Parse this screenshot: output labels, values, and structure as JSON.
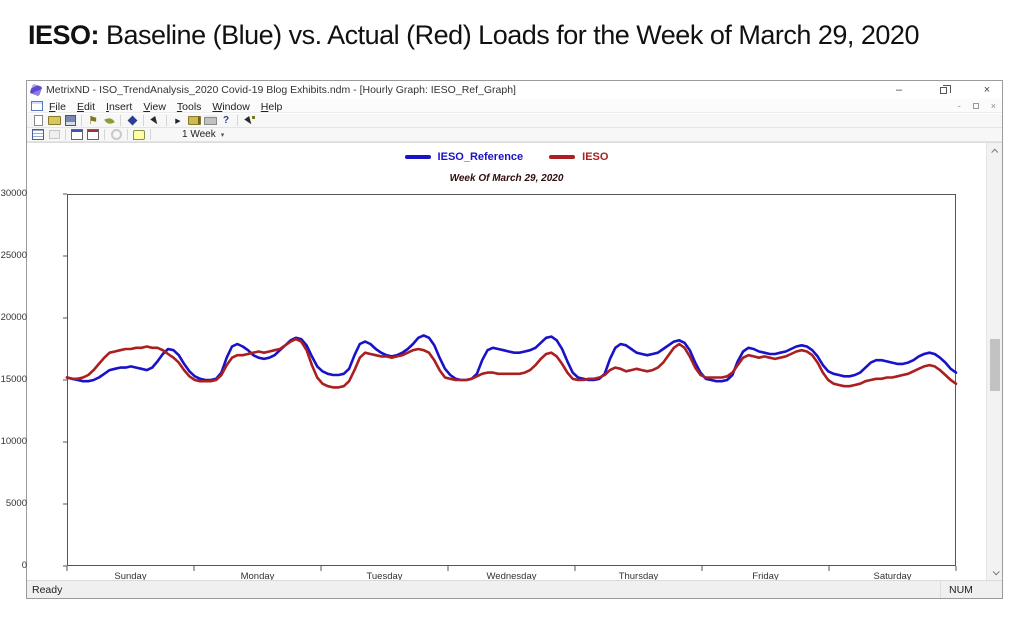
{
  "page_title": {
    "prefix": "IESO:",
    "rest": " Baseline (Blue) vs. Actual (Red) Loads for the Week of March 29, 2020"
  },
  "window": {
    "title": "MetrixND - ISO_TrendAnalysis_2020 Covid-19 Blog Exhibits.ndm - [Hourly Graph: IESO_Ref_Graph]",
    "controls": {
      "minimize": "–",
      "close": "×"
    },
    "mdi_controls": {
      "minimize": "-",
      "close": "×"
    },
    "menu_items": [
      "File",
      "Edit",
      "Insert",
      "View",
      "Tools",
      "Window",
      "Help"
    ],
    "toolbar1_icons": [
      "new-document-icon",
      "open-file-icon",
      "save-icon",
      "|",
      "flag-icon",
      "leaf-icon",
      "|",
      "book-icon",
      "|",
      "pointer-icon",
      "|",
      "run-icon",
      "export-folder-icon",
      "print-icon",
      "help-icon",
      "|",
      "pointer-run-icon"
    ],
    "toolbar2_icons": [
      "grid-icon",
      "link-disabled-icon",
      "|",
      "graph-new-icon",
      "graph-edit-icon",
      "|",
      "refresh-disabled-icon",
      "|",
      "comment-icon",
      "|"
    ],
    "toolbar_glyphs": {
      "flag-icon": "⚑",
      "run-icon": "▶",
      "help-icon": "?"
    },
    "period_selector": {
      "label": "1 Week",
      "caret": "▾"
    },
    "statusbar": {
      "left": "Ready",
      "right": "NUM"
    }
  },
  "chart_data": {
    "type": "line",
    "title": "Week Of March 29, 2020",
    "xlabel": "",
    "ylabel": "",
    "ylim": [
      0,
      30000
    ],
    "yticks": [
      0,
      5000,
      10000,
      15000,
      20000,
      25000,
      30000
    ],
    "grid": false,
    "legend_position": "top-center",
    "x_categories": [
      "Sunday",
      "Monday",
      "Tuesday",
      "Wednesday",
      "Thursday",
      "Friday",
      "Saturday"
    ],
    "hours_per_day": 24,
    "series": [
      {
        "name": "IESO_Reference",
        "color": "#1a12c8",
        "values": [
          15200,
          15100,
          15000,
          14900,
          14900,
          15000,
          15200,
          15500,
          15800,
          15900,
          16000,
          16000,
          16100,
          16000,
          15900,
          15800,
          16000,
          16500,
          17100,
          17500,
          17400,
          17000,
          16300,
          15700,
          15300,
          15100,
          15000,
          15000,
          15100,
          15600,
          16800,
          17700,
          17900,
          17700,
          17400,
          17000,
          16800,
          16700,
          16800,
          17000,
          17400,
          17800,
          18200,
          18400,
          18300,
          17800,
          16900,
          16100,
          15700,
          15500,
          15400,
          15400,
          15500,
          15900,
          17000,
          17900,
          18100,
          17900,
          17500,
          17200,
          17000,
          16900,
          17000,
          17200,
          17500,
          17900,
          18400,
          18600,
          18400,
          17800,
          16800,
          15900,
          15400,
          15100,
          15000,
          15000,
          15100,
          15500,
          16600,
          17400,
          17600,
          17500,
          17400,
          17300,
          17200,
          17200,
          17300,
          17400,
          17600,
          18000,
          18400,
          18500,
          18200,
          17500,
          16500,
          15600,
          15200,
          15100,
          15000,
          15000,
          15100,
          15500,
          16700,
          17600,
          17900,
          17800,
          17500,
          17200,
          17100,
          17000,
          17100,
          17200,
          17500,
          17800,
          18100,
          18200,
          18000,
          17400,
          16400,
          15600,
          15100,
          15000,
          14900,
          14900,
          15000,
          15400,
          16500,
          17300,
          17600,
          17500,
          17300,
          17200,
          17100,
          17100,
          17200,
          17300,
          17500,
          17700,
          17800,
          17700,
          17400,
          16900,
          16200,
          15700,
          15500,
          15400,
          15300,
          15300,
          15400,
          15600,
          16000,
          16400,
          16600,
          16600,
          16500,
          16400,
          16300,
          16300,
          16400,
          16600,
          16900,
          17100,
          17200,
          17100,
          16800,
          16400,
          15900,
          15600
        ]
      },
      {
        "name": "IESO",
        "color": "#aa1f1f",
        "values": [
          15200,
          15100,
          15100,
          15200,
          15400,
          15800,
          16300,
          16800,
          17200,
          17300,
          17400,
          17500,
          17500,
          17600,
          17600,
          17700,
          17600,
          17600,
          17400,
          17100,
          16800,
          16400,
          15800,
          15300,
          15000,
          14900,
          14900,
          14900,
          15000,
          15400,
          16200,
          16800,
          17000,
          17000,
          17100,
          17200,
          17300,
          17200,
          17300,
          17400,
          17500,
          17800,
          18100,
          18300,
          18100,
          17400,
          16200,
          15200,
          14700,
          14500,
          14400,
          14400,
          14500,
          14900,
          15800,
          16800,
          17200,
          17100,
          17000,
          16900,
          16900,
          16800,
          16900,
          17000,
          17200,
          17400,
          17500,
          17400,
          17200,
          16600,
          15800,
          15200,
          15100,
          15000,
          15000,
          15000,
          15100,
          15300,
          15500,
          15600,
          15600,
          15500,
          15500,
          15500,
          15500,
          15500,
          15600,
          15800,
          16200,
          16700,
          17100,
          17200,
          16900,
          16300,
          15600,
          15100,
          15000,
          15000,
          15100,
          15100,
          15200,
          15400,
          15800,
          16000,
          15900,
          15700,
          15800,
          15900,
          15800,
          15700,
          15800,
          16000,
          16400,
          17000,
          17600,
          17900,
          17600,
          16900,
          16000,
          15400,
          15200,
          15200,
          15200,
          15200,
          15300,
          15600,
          16200,
          16800,
          17000,
          16900,
          16800,
          16900,
          16800,
          16700,
          16800,
          16900,
          17100,
          17300,
          17400,
          17300,
          17000,
          16400,
          15600,
          15000,
          14700,
          14600,
          14500,
          14500,
          14600,
          14700,
          14900,
          15000,
          15100,
          15100,
          15200,
          15200,
          15300,
          15400,
          15500,
          15700,
          15900,
          16100,
          16200,
          16100,
          15800,
          15400,
          15000,
          14700
        ]
      }
    ]
  }
}
